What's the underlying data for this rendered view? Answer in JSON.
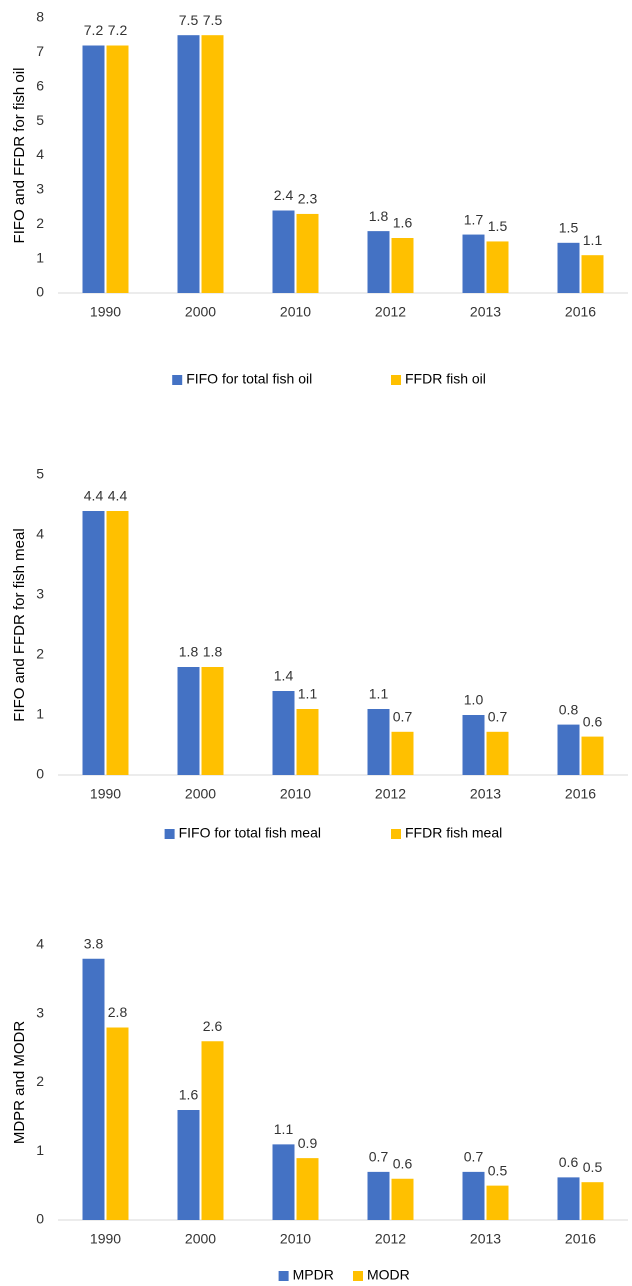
{
  "chart_data": [
    {
      "type": "bar",
      "y_label": "FIFO and FFDR for fish oil",
      "categories": [
        "1990",
        "2000",
        "2010",
        "2012",
        "2013",
        "2016"
      ],
      "series": [
        {
          "name": "FIFO for total fish oil",
          "color": "#4472c4",
          "values": [
            7.2,
            7.5,
            2.4,
            1.8,
            1.7,
            1.46
          ],
          "value_labels": [
            "7.2",
            "7.5",
            "2.4",
            "1.8",
            "1.7",
            "1.5"
          ]
        },
        {
          "name": "FFDR fish oil",
          "color": "#ffc000",
          "values": [
            7.2,
            7.5,
            2.3,
            1.6,
            1.5,
            1.1
          ],
          "value_labels": [
            "7.2",
            "7.5",
            "2.3",
            "1.6",
            "1.5",
            "1.1"
          ]
        }
      ],
      "ylim": [
        0,
        8
      ],
      "yticks": [
        0,
        1,
        2,
        3,
        4,
        5,
        6,
        7,
        8
      ],
      "legend": "bottom"
    },
    {
      "type": "bar",
      "y_label": "FIFO and FFDR for fish meal",
      "categories": [
        "1990",
        "2000",
        "2010",
        "2012",
        "2013",
        "2016"
      ],
      "series": [
        {
          "name": "FIFO for total fish meal",
          "color": "#4472c4",
          "values": [
            4.4,
            1.8,
            1.4,
            1.1,
            1.0,
            0.84
          ],
          "value_labels": [
            "4.4",
            "1.8",
            "1.4",
            "1.1",
            "1.0",
            "0.8"
          ]
        },
        {
          "name": "FFDR fish meal",
          "color": "#ffc000",
          "values": [
            4.4,
            1.8,
            1.1,
            0.72,
            0.72,
            0.64
          ],
          "value_labels": [
            "4.4",
            "1.8",
            "1.1",
            "0.7",
            "0.7",
            "0.6"
          ]
        }
      ],
      "ylim": [
        0,
        5
      ],
      "yticks": [
        0,
        1,
        2,
        3,
        4,
        5
      ],
      "legend": "bottom"
    },
    {
      "type": "bar",
      "y_label": "MDPR and MODR",
      "categories": [
        "1990",
        "2000",
        "2010",
        "2012",
        "2013",
        "2016"
      ],
      "series": [
        {
          "name": "MPDR",
          "color": "#4472c4",
          "values": [
            3.8,
            1.6,
            1.1,
            0.7,
            0.7,
            0.62
          ],
          "value_labels": [
            "3.8",
            "1.6",
            "1.1",
            "0.7",
            "0.7",
            "0.6"
          ]
        },
        {
          "name": "MODR",
          "color": "#ffc000",
          "values": [
            2.8,
            2.6,
            0.9,
            0.6,
            0.5,
            0.55
          ],
          "value_labels": [
            "2.8",
            "2.6",
            "0.9",
            "0.6",
            "0.5",
            "0.5"
          ]
        }
      ],
      "ylim": [
        0,
        4
      ],
      "yticks": [
        0,
        1,
        2,
        3,
        4
      ],
      "legend": "bottom"
    }
  ]
}
